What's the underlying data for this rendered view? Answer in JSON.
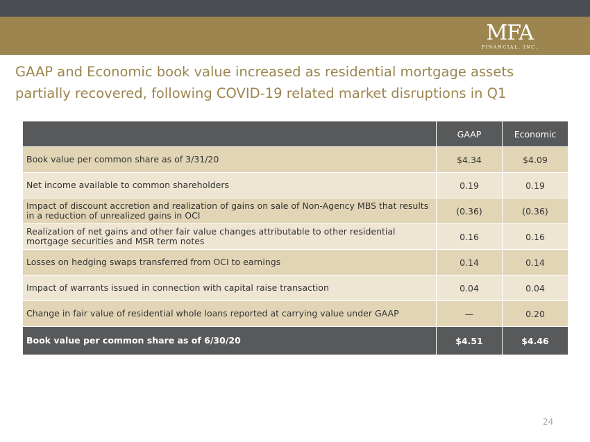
{
  "logo": {
    "main": "MFA",
    "sub": "FINANCIAL, INC."
  },
  "headline": "GAAP and Economic book value increased as residential mortgage assets partially recovered, following COVID-19 related market disruptions in Q1",
  "table": {
    "columns": [
      "",
      "GAAP",
      "Economic"
    ],
    "rows": [
      {
        "label": "Book value per common share as of 3/31/20",
        "gaap": "$4.34",
        "economic": "$4.09"
      },
      {
        "label": "Net income available to common shareholders",
        "gaap": "0.19",
        "economic": "0.19"
      },
      {
        "label": "Impact of discount accretion and realization of gains on sale of Non-Agency MBS that results in a reduction of unrealized gains in OCI",
        "gaap": "(0.36)",
        "economic": "(0.36)"
      },
      {
        "label": "Realization of net gains and other fair value changes attributable to other residential mortgage securities and MSR term notes",
        "gaap": "0.16",
        "economic": "0.16"
      },
      {
        "label": "Losses on hedging swaps transferred from OCI to earnings",
        "gaap": "0.14",
        "economic": "0.14"
      },
      {
        "label": "Impact of warrants issued in connection with capital raise transaction",
        "gaap": "0.04",
        "economic": "0.04"
      },
      {
        "label": "Change in fair value of residential whole loans reported at carrying value under GAAP",
        "gaap": "—",
        "economic": "0.20"
      }
    ],
    "total": {
      "label": "Book value per common share as of 6/30/20",
      "gaap": "$4.51",
      "economic": "$4.46"
    }
  },
  "page_number": "24"
}
